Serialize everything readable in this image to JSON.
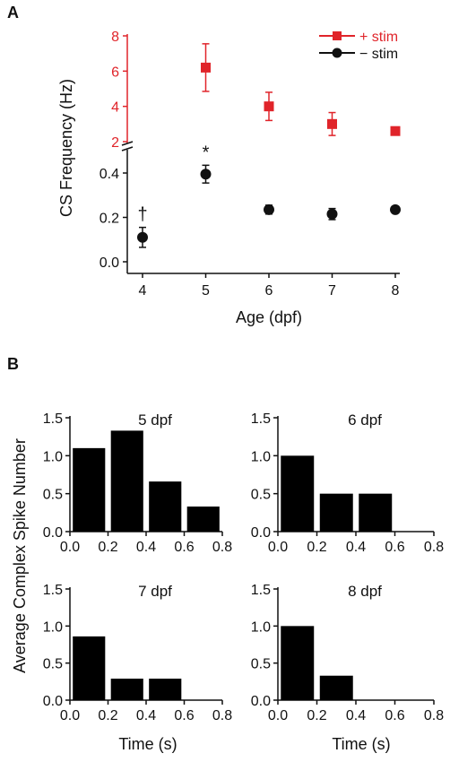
{
  "panels": {
    "a_label": "A",
    "b_label": "B"
  },
  "chart_data": [
    {
      "type": "scatter",
      "xlabel": "Age (dpf)",
      "ylabel": "CS Frequency (Hz)",
      "x_ticks": [
        "4",
        "5",
        "6",
        "7",
        "8"
      ],
      "y_upper_ticks": [
        "2",
        "4",
        "6",
        "8"
      ],
      "y_lower_ticks": [
        "0.0",
        "0.2",
        "0.4"
      ],
      "ylim_upper": [
        2,
        8
      ],
      "ylim_lower": [
        0,
        0.48
      ],
      "legend_position": "top-right",
      "colors": {
        "stim_plus": "#e0242a",
        "stim_minus": "#111111"
      },
      "series": [
        {
          "name": "+ stim",
          "x": [
            5,
            6,
            7,
            8
          ],
          "y": [
            6.2,
            4.0,
            3.0,
            2.6
          ],
          "err": [
            1.35,
            0.8,
            0.65,
            0
          ]
        },
        {
          "name": "− stim",
          "x": [
            4,
            5,
            6,
            7,
            8
          ],
          "y": [
            0.11,
            0.395,
            0.235,
            0.215,
            0.235
          ],
          "err": [
            0.045,
            0.04,
            0.02,
            0.025,
            0
          ]
        }
      ],
      "annotations": [
        {
          "text": "†",
          "x": 4
        },
        {
          "text": "*",
          "x": 5
        }
      ]
    },
    {
      "type": "bar",
      "title": "5 dpf",
      "x": [
        0.1,
        0.3,
        0.5,
        0.7
      ],
      "values": [
        1.1,
        1.33,
        0.66,
        0.33
      ],
      "xlim": [
        0,
        0.8
      ],
      "ylim": [
        0,
        1.5
      ]
    },
    {
      "type": "bar",
      "title": "6 dpf",
      "x": [
        0.1,
        0.3,
        0.5
      ],
      "values": [
        1.0,
        0.5,
        0.5
      ],
      "xlim": [
        0,
        0.8
      ],
      "ylim": [
        0,
        1.5
      ]
    },
    {
      "type": "bar",
      "title": "7 dpf",
      "x": [
        0.1,
        0.3,
        0.5
      ],
      "values": [
        0.86,
        0.29,
        0.29
      ],
      "xlim": [
        0,
        0.8
      ],
      "ylim": [
        0,
        1.5
      ]
    },
    {
      "type": "bar",
      "title": "8 dpf",
      "x": [
        0.1,
        0.3
      ],
      "values": [
        1.0,
        0.33
      ],
      "xlim": [
        0,
        0.8
      ],
      "ylim": [
        0,
        1.5
      ]
    }
  ],
  "panel_b": {
    "ylabel": "Average Complex Spike Number",
    "xlabel": "Time (s)",
    "x_ticks": [
      "0.0",
      "0.2",
      "0.4",
      "0.6",
      "0.8"
    ],
    "y_ticks": [
      "0.0",
      "0.5",
      "1.0",
      "1.5"
    ]
  }
}
